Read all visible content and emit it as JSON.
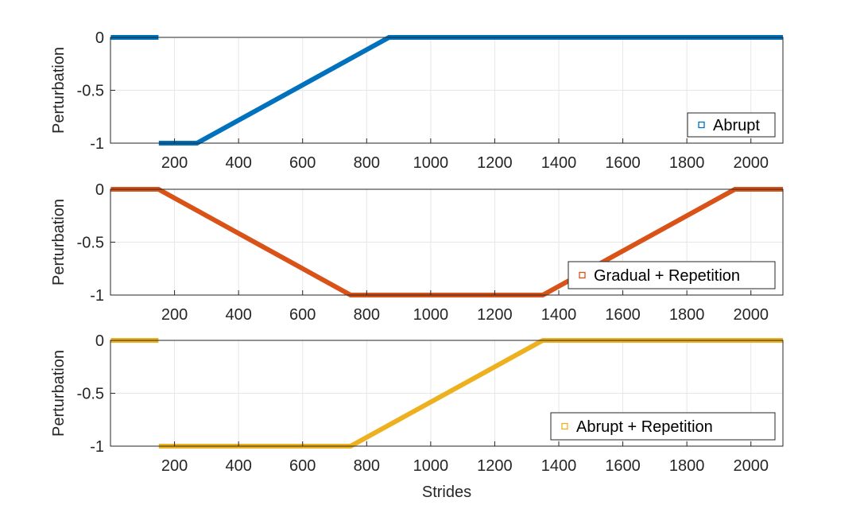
{
  "chart_data": [
    {
      "type": "scatter",
      "ylabel": "Perturbation",
      "xlabel": "",
      "xlim": [
        0,
        2100
      ],
      "ylim": [
        -1,
        0
      ],
      "xticks": [
        "200",
        "400",
        "600",
        "800",
        "1000",
        "1200",
        "1400",
        "1600",
        "1800",
        "2000"
      ],
      "yticks": [
        "0",
        "-0.5",
        "-1"
      ],
      "grid": true,
      "legend_position": "bottom-right",
      "series": [
        {
          "name": "Abrupt",
          "color": "#0072BD",
          "segments": [
            [
              [
                1,
                0
              ],
              [
                150,
                0
              ]
            ],
            [
              [
                151,
                -1
              ],
              [
                270,
                -1
              ],
              [
                870,
                0
              ],
              [
                2100,
                0
              ]
            ]
          ]
        }
      ]
    },
    {
      "type": "scatter",
      "ylabel": "Perturbation",
      "xlabel": "",
      "xlim": [
        0,
        2100
      ],
      "ylim": [
        -1,
        0
      ],
      "xticks": [
        "200",
        "400",
        "600",
        "800",
        "1000",
        "1200",
        "1400",
        "1600",
        "1800",
        "2000"
      ],
      "yticks": [
        "0",
        "-0.5",
        "-1"
      ],
      "grid": true,
      "legend_position": "bottom-right",
      "series": [
        {
          "name": "Gradual + Repetition",
          "color": "#D95319",
          "segments": [
            [
              [
                1,
                0
              ],
              [
                150,
                0
              ],
              [
                750,
                -1
              ],
              [
                1350,
                -1
              ],
              [
                1950,
                0
              ],
              [
                2100,
                0
              ]
            ]
          ]
        }
      ]
    },
    {
      "type": "scatter",
      "ylabel": "Perturbation",
      "xlabel": "Strides",
      "xlim": [
        0,
        2100
      ],
      "ylim": [
        -1,
        0
      ],
      "xticks": [
        "200",
        "400",
        "600",
        "800",
        "1000",
        "1200",
        "1400",
        "1600",
        "1800",
        "2000"
      ],
      "yticks": [
        "0",
        "-0.5",
        "-1"
      ],
      "grid": true,
      "legend_position": "bottom-right",
      "series": [
        {
          "name": "Abrupt + Repetition",
          "color": "#EDB120",
          "segments": [
            [
              [
                1,
                0
              ],
              [
                150,
                0
              ]
            ],
            [
              [
                151,
                -1
              ],
              [
                750,
                -1
              ],
              [
                1350,
                0
              ],
              [
                2100,
                0
              ]
            ]
          ]
        }
      ]
    }
  ]
}
